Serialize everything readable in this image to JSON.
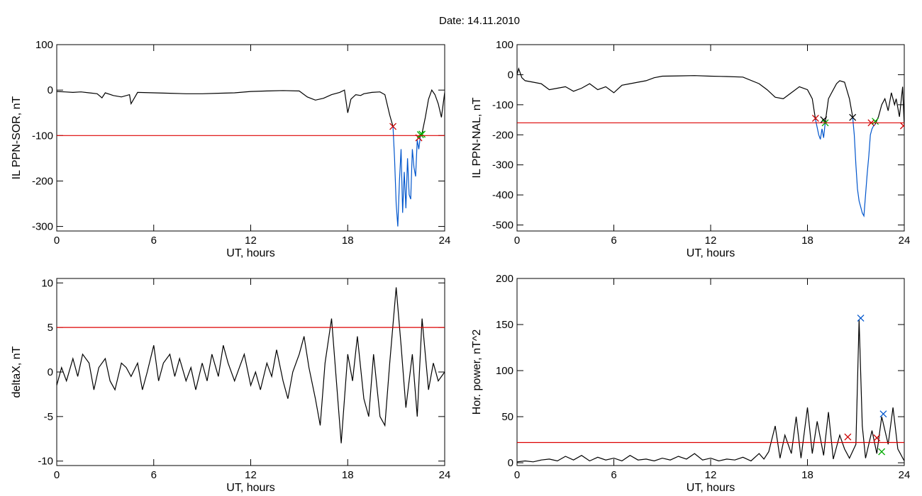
{
  "figure_title": "Date:  14.11.2010",
  "chart_data": [
    {
      "type": "line",
      "ylabel": "IL PPN-SOR, nT",
      "xlabel": "UT, hours",
      "xlim": [
        0,
        24
      ],
      "ylim": [
        -310,
        100
      ],
      "xticks": [
        "0",
        "6",
        "12",
        "18",
        "24"
      ],
      "yticks": [
        -300,
        -200,
        -100,
        0,
        100
      ],
      "threshold": -100,
      "series": [
        {
          "color": "#000000",
          "x": [
            0,
            0.5,
            1,
            1.5,
            2,
            2.5,
            2.8,
            3,
            3.5,
            4,
            4.5,
            4.6,
            5,
            6,
            7,
            8,
            9,
            10,
            11,
            12,
            13,
            14,
            15,
            15.5,
            16,
            16.5,
            17,
            17.5,
            17.8,
            18,
            18.2,
            18.5,
            18.8,
            19,
            19.5,
            20,
            20.3,
            20.6,
            20.8
          ],
          "y": [
            -3,
            -4,
            -5,
            -4,
            -6,
            -8,
            -17,
            -6,
            -12,
            -15,
            -10,
            -30,
            -5,
            -6,
            -7,
            -8,
            -8,
            -7,
            -6,
            -3,
            -2,
            -1,
            -2,
            -15,
            -22,
            -18,
            -10,
            -5,
            0,
            -50,
            -20,
            -10,
            -12,
            -8,
            -5,
            -4,
            -10,
            -55,
            -80
          ]
        },
        {
          "color": "#0055cc",
          "x": [
            20.8,
            20.9,
            21,
            21.1,
            21.2,
            21.3,
            21.4,
            21.5,
            21.6,
            21.7,
            21.8,
            21.9,
            22,
            22.1,
            22.2,
            22.3,
            22.4,
            22.5,
            22.6
          ],
          "y": [
            -80,
            -150,
            -250,
            -300,
            -200,
            -130,
            -270,
            -180,
            -260,
            -150,
            -230,
            -240,
            -130,
            -170,
            -190,
            -110,
            -130,
            -100,
            -95
          ]
        },
        {
          "color": "#000000",
          "x": [
            22.6,
            22.8,
            23,
            23.2,
            23.4,
            23.6,
            23.8,
            24
          ],
          "y": [
            -95,
            -60,
            -20,
            0,
            -10,
            -30,
            -60,
            -5
          ]
        }
      ],
      "markers": [
        {
          "x": 20.8,
          "y": -80,
          "color": "#cc0000"
        },
        {
          "x": 22.4,
          "y": -105,
          "color": "#cc0000"
        },
        {
          "x": 22.5,
          "y": -98,
          "color": "#00aa00"
        },
        {
          "x": 22.6,
          "y": -97,
          "color": "#00aa00"
        }
      ]
    },
    {
      "type": "line",
      "ylabel": "IL PPN-NAL, nT",
      "xlabel": "UT, hours",
      "xlim": [
        0,
        24
      ],
      "ylim": [
        -520,
        100
      ],
      "xticks": [
        "0",
        "6",
        "12",
        "18",
        "24"
      ],
      "yticks": [
        -500,
        -400,
        -300,
        -200,
        -100,
        0,
        100
      ],
      "threshold": -160,
      "series": [
        {
          "color": "#000000",
          "x": [
            0,
            0.1,
            0.3,
            0.5,
            1,
            1.5,
            2,
            2.5,
            3,
            3.5,
            4,
            4.5,
            5,
            5.5,
            6,
            6.5,
            7,
            7.5,
            8,
            8.5,
            9,
            10,
            11,
            12,
            13,
            14,
            15,
            15.5,
            16,
            16.5,
            17,
            17.5,
            18,
            18.3,
            18.5
          ],
          "y": [
            0,
            20,
            -10,
            -20,
            -25,
            -30,
            -50,
            -45,
            -40,
            -55,
            -45,
            -30,
            -50,
            -40,
            -60,
            -35,
            -30,
            -25,
            -20,
            -10,
            -5,
            -4,
            -3,
            -5,
            -6,
            -8,
            -30,
            -50,
            -75,
            -80,
            -60,
            -40,
            -50,
            -80,
            -150
          ]
        },
        {
          "color": "#0055cc",
          "x": [
            18.5,
            18.7,
            18.8,
            18.9,
            19,
            19.1
          ],
          "y": [
            -150,
            -200,
            -215,
            -180,
            -210,
            -160
          ]
        },
        {
          "color": "#000000",
          "x": [
            19.1,
            19.3,
            19.5,
            19.8,
            20,
            20.3,
            20.6,
            20.8
          ],
          "y": [
            -160,
            -80,
            -60,
            -30,
            -20,
            -25,
            -80,
            -140
          ]
        },
        {
          "color": "#0055cc",
          "x": [
            20.8,
            20.9,
            21,
            21.1,
            21.2,
            21.3,
            21.4,
            21.5,
            21.6,
            21.7,
            21.8,
            21.9,
            22,
            22.1,
            22.2
          ],
          "y": [
            -140,
            -200,
            -300,
            -380,
            -420,
            -440,
            -460,
            -470,
            -400,
            -330,
            -270,
            -200,
            -180,
            -170,
            -165
          ]
        },
        {
          "color": "#000000",
          "x": [
            22.2,
            22.4,
            22.6,
            22.8,
            23,
            23.2,
            23.4,
            23.5,
            23.7,
            23.9,
            24
          ],
          "y": [
            -165,
            -140,
            -100,
            -80,
            -120,
            -60,
            -100,
            -80,
            -140,
            -40,
            -170
          ]
        }
      ],
      "markers": [
        {
          "x": 18.5,
          "y": -145,
          "color": "#cc0000"
        },
        {
          "x": 19.0,
          "y": -150,
          "color": "#000000"
        },
        {
          "x": 19.1,
          "y": -160,
          "color": "#00aa00"
        },
        {
          "x": 20.8,
          "y": -142,
          "color": "#000000"
        },
        {
          "x": 21.95,
          "y": -160,
          "color": "#cc0000"
        },
        {
          "x": 22.2,
          "y": -155,
          "color": "#00aa00"
        },
        {
          "x": 23.95,
          "y": -170,
          "color": "#cc0000"
        }
      ]
    },
    {
      "type": "line",
      "ylabel": "deltaX, nT",
      "xlabel": "UT, hours",
      "xlim": [
        0,
        24
      ],
      "ylim": [
        -10.5,
        10.5
      ],
      "xticks": [
        "0",
        "6",
        "12",
        "18",
        "24"
      ],
      "yticks": [
        -10,
        -5,
        0,
        5,
        10
      ],
      "threshold": 5,
      "series": [
        {
          "color": "#000000",
          "x": [
            0,
            0.3,
            0.6,
            1,
            1.3,
            1.6,
            2,
            2.3,
            2.6,
            3,
            3.3,
            3.6,
            4,
            4.3,
            4.6,
            5,
            5.3,
            5.6,
            6,
            6.3,
            6.6,
            7,
            7.3,
            7.6,
            8,
            8.3,
            8.6,
            9,
            9.3,
            9.6,
            10,
            10.3,
            10.6,
            11,
            11.3,
            11.6,
            12,
            12.3,
            12.6,
            13,
            13.3,
            13.6,
            14,
            14.3,
            14.6,
            15,
            15.3,
            15.6,
            16,
            16.3,
            16.6,
            17,
            17.3,
            17.6,
            18,
            18.3,
            18.6,
            19,
            19.3,
            19.6,
            20,
            20.3,
            20.6,
            21,
            21.3,
            21.6,
            22,
            22.3,
            22.6,
            23,
            23.3,
            23.6,
            24
          ],
          "y": [
            -1.5,
            0.5,
            -1,
            1.5,
            -0.5,
            2,
            1,
            -2,
            0.5,
            1.5,
            -1,
            -2,
            1,
            0.5,
            -0.5,
            1,
            -2,
            0,
            3,
            -1,
            1,
            2,
            -0.5,
            1.5,
            -1,
            0.5,
            -2,
            1,
            -1,
            2,
            -0.5,
            3,
            1,
            -1,
            0.5,
            2,
            -1.5,
            0,
            -2,
            1,
            -0.5,
            2.5,
            -1,
            -3,
            0,
            2,
            4,
            0.5,
            -3,
            -6,
            1,
            6,
            -1,
            -8,
            2,
            -1,
            4,
            -3,
            -5,
            2,
            -5,
            -6,
            1,
            9.5,
            3,
            -4,
            2,
            -5,
            6,
            -2,
            1,
            -1,
            0
          ]
        }
      ],
      "markers": []
    },
    {
      "type": "line",
      "ylabel": "Hor. power, nT^2",
      "xlabel": "UT, hours",
      "xlim": [
        0,
        24
      ],
      "ylim": [
        -3,
        200
      ],
      "xticks": [
        "0",
        "6",
        "12",
        "18",
        "24"
      ],
      "yticks": [
        0,
        50,
        100,
        150,
        200
      ],
      "threshold": 22,
      "series": [
        {
          "color": "#000000",
          "x": [
            0,
            0.5,
            1,
            1.5,
            2,
            2.5,
            3,
            3.5,
            4,
            4.5,
            5,
            5.5,
            6,
            6.5,
            7,
            7.5,
            8,
            8.5,
            9,
            9.5,
            10,
            10.5,
            11,
            11.5,
            12,
            12.5,
            13,
            13.5,
            14,
            14.5,
            15,
            15.3,
            15.6,
            16,
            16.3,
            16.6,
            17,
            17.3,
            17.6,
            18,
            18.3,
            18.6,
            19,
            19.3,
            19.6,
            20,
            20.3,
            20.6,
            21,
            21.2,
            21.4,
            21.6,
            22,
            22.3,
            22.6,
            23,
            23.3,
            23.6,
            24
          ],
          "y": [
            1,
            2,
            1,
            3,
            4,
            2,
            7,
            3,
            8,
            2,
            6,
            3,
            5,
            2,
            8,
            3,
            4,
            2,
            5,
            3,
            7,
            4,
            10,
            3,
            5,
            2,
            4,
            3,
            6,
            2,
            10,
            4,
            12,
            40,
            5,
            30,
            10,
            50,
            5,
            60,
            10,
            45,
            8,
            55,
            4,
            30,
            15,
            5,
            20,
            155,
            40,
            5,
            35,
            10,
            50,
            20,
            60,
            15,
            2
          ]
        }
      ],
      "markers": [
        {
          "x": 21.3,
          "y": 157,
          "color": "#0055cc"
        },
        {
          "x": 22.7,
          "y": 53,
          "color": "#0055cc"
        },
        {
          "x": 20.5,
          "y": 28,
          "color": "#cc0000"
        },
        {
          "x": 22.3,
          "y": 27,
          "color": "#cc0000"
        },
        {
          "x": 22.6,
          "y": 12,
          "color": "#00aa00"
        }
      ]
    }
  ]
}
